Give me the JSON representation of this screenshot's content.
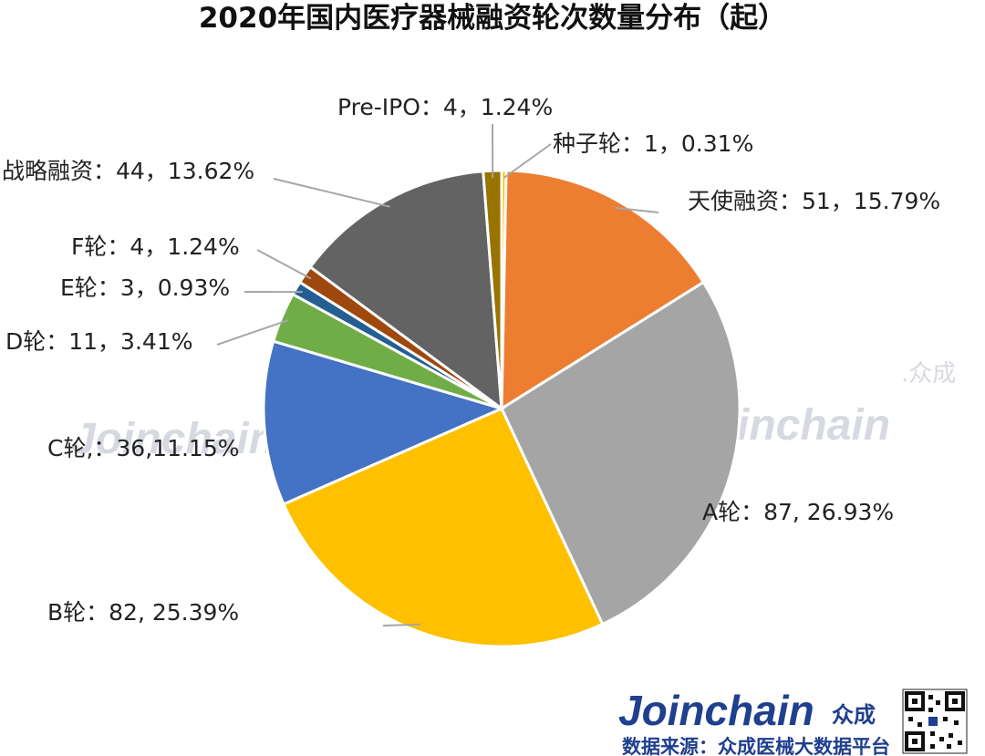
{
  "chart_data": {
    "type": "pie",
    "title": "2020年国内医疗器械融资轮次数量分布（起）",
    "unit": "起",
    "slices": [
      {
        "name": "种子轮",
        "value": 1,
        "percent": 0.31,
        "label": "种子轮：1，0.31%",
        "color": "#FFC000"
      },
      {
        "name": "天使融资",
        "value": 51,
        "percent": 15.79,
        "label": "天使融资：51，15.79%",
        "color": "#ED7D31"
      },
      {
        "name": "A轮",
        "value": 87,
        "percent": 26.93,
        "label": "A轮：87, 26.93%",
        "color": "#A5A5A5"
      },
      {
        "name": "B轮",
        "value": 82,
        "percent": 25.39,
        "label": "B轮：82, 25.39%",
        "color": "#FFC000"
      },
      {
        "name": "C轮",
        "value": 36,
        "percent": 11.15,
        "label": "C轮,：36,11.15%",
        "color": "#4472C4"
      },
      {
        "name": "D轮",
        "value": 11,
        "percent": 3.41,
        "label": "D轮：11，3.41%",
        "color": "#70AD47"
      },
      {
        "name": "E轮",
        "value": 3,
        "percent": 0.93,
        "label": "E轮：3，0.93%",
        "color": "#255E91"
      },
      {
        "name": "F轮",
        "value": 4,
        "percent": 1.24,
        "label": "F轮：4，1.24%",
        "color": "#9E480E"
      },
      {
        "name": "战略融资",
        "value": 44,
        "percent": 13.62,
        "label": "战略融资：44，13.62%",
        "color": "#636363"
      },
      {
        "name": "Pre-IPO",
        "value": 4,
        "percent": 1.24,
        "label": "Pre-IPO：4，1.24%",
        "color": "#997300"
      }
    ]
  },
  "watermark": {
    "text": "Joinchain",
    "cn": ".众成"
  },
  "footer": {
    "brand": "Joinchain",
    "brand_cn": "众成",
    "source": "数据来源：众成医械大数据平台"
  }
}
